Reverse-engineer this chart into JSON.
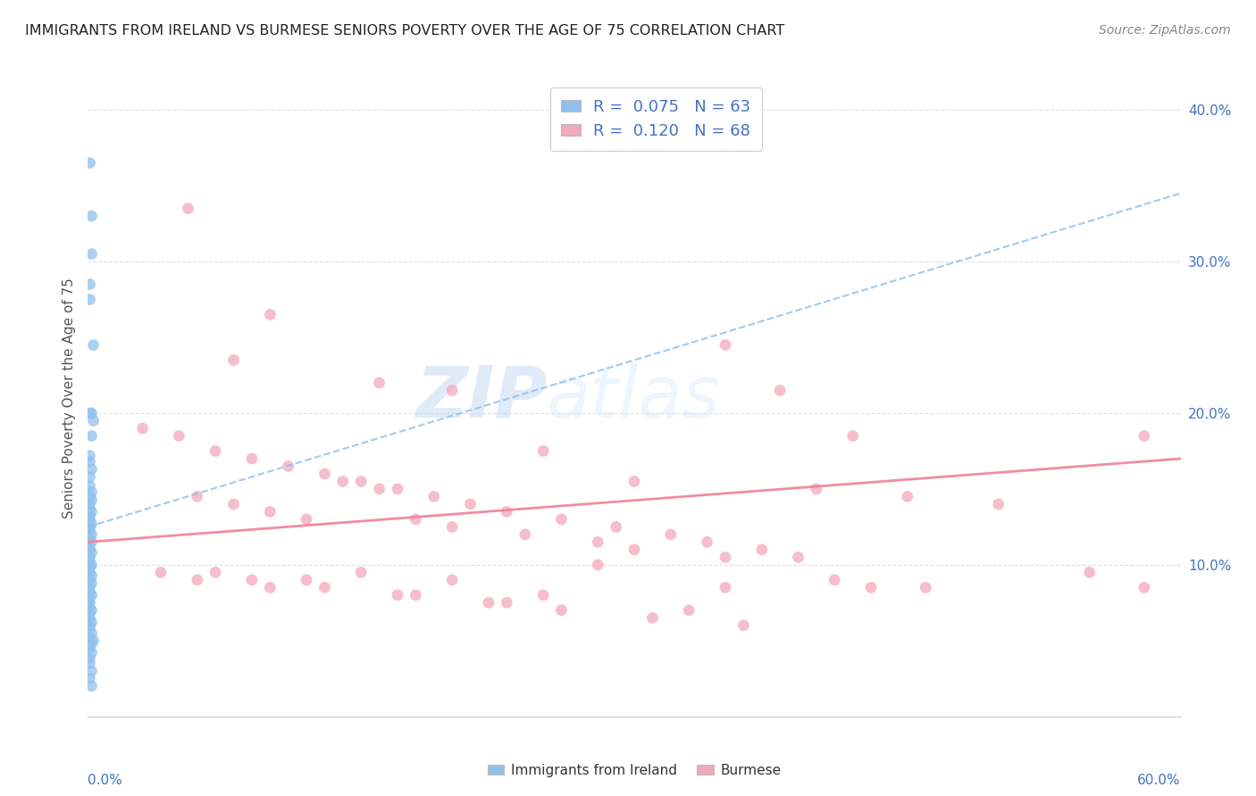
{
  "title": "IMMIGRANTS FROM IRELAND VS BURMESE SENIORS POVERTY OVER THE AGE OF 75 CORRELATION CHART",
  "source": "Source: ZipAtlas.com",
  "ylabel": "Seniors Poverty Over the Age of 75",
  "xlim": [
    0.0,
    0.6
  ],
  "ylim": [
    0.0,
    0.42
  ],
  "ireland_R": 0.075,
  "ireland_N": 63,
  "burmese_R": 0.12,
  "burmese_N": 68,
  "ireland_color": "#92C0EC",
  "burmese_color": "#F4A8BB",
  "ireland_line_color": "#92C0EC",
  "burmese_line_color": "#F08098",
  "legend_label_ireland": "Immigrants from Ireland",
  "legend_label_burmese": "Burmese",
  "watermark_zip": "ZIP",
  "watermark_atlas": "atlas",
  "background_color": "#ffffff",
  "ireland_x": [
    0.001,
    0.002,
    0.002,
    0.001,
    0.001,
    0.003,
    0.002,
    0.001,
    0.003,
    0.002,
    0.001,
    0.001,
    0.002,
    0.001,
    0.001,
    0.002,
    0.001,
    0.002,
    0.001,
    0.001,
    0.002,
    0.001,
    0.001,
    0.002,
    0.001,
    0.001,
    0.002,
    0.001,
    0.002,
    0.001,
    0.001,
    0.002,
    0.001,
    0.001,
    0.002,
    0.001,
    0.001,
    0.002,
    0.001,
    0.002,
    0.001,
    0.001,
    0.002,
    0.001,
    0.001,
    0.001,
    0.002,
    0.001,
    0.001,
    0.002,
    0.001,
    0.001,
    0.002,
    0.001,
    0.003,
    0.002,
    0.001,
    0.002,
    0.001,
    0.001,
    0.002,
    0.001,
    0.002
  ],
  "ireland_y": [
    0.365,
    0.33,
    0.305,
    0.285,
    0.275,
    0.245,
    0.2,
    0.2,
    0.195,
    0.185,
    0.172,
    0.168,
    0.163,
    0.158,
    0.152,
    0.148,
    0.145,
    0.143,
    0.14,
    0.137,
    0.135,
    0.132,
    0.13,
    0.127,
    0.125,
    0.123,
    0.12,
    0.118,
    0.115,
    0.112,
    0.11,
    0.108,
    0.105,
    0.102,
    0.1,
    0.098,
    0.095,
    0.093,
    0.09,
    0.088,
    0.085,
    0.082,
    0.08,
    0.078,
    0.075,
    0.072,
    0.07,
    0.068,
    0.065,
    0.062,
    0.06,
    0.058,
    0.055,
    0.052,
    0.05,
    0.048,
    0.045,
    0.042,
    0.038,
    0.035,
    0.03,
    0.025,
    0.02
  ],
  "burmese_x": [
    0.055,
    0.1,
    0.35,
    0.08,
    0.16,
    0.2,
    0.38,
    0.25,
    0.42,
    0.58,
    0.03,
    0.05,
    0.07,
    0.09,
    0.11,
    0.13,
    0.15,
    0.17,
    0.19,
    0.21,
    0.23,
    0.26,
    0.29,
    0.32,
    0.34,
    0.37,
    0.39,
    0.14,
    0.16,
    0.06,
    0.08,
    0.1,
    0.12,
    0.18,
    0.2,
    0.24,
    0.28,
    0.3,
    0.35,
    0.28,
    0.15,
    0.2,
    0.35,
    0.25,
    0.3,
    0.4,
    0.45,
    0.5,
    0.12,
    0.07,
    0.09,
    0.13,
    0.17,
    0.22,
    0.26,
    0.31,
    0.36,
    0.41,
    0.46,
    0.04,
    0.06,
    0.1,
    0.18,
    0.23,
    0.33,
    0.43,
    0.55,
    0.58
  ],
  "burmese_y": [
    0.335,
    0.265,
    0.245,
    0.235,
    0.22,
    0.215,
    0.215,
    0.175,
    0.185,
    0.185,
    0.19,
    0.185,
    0.175,
    0.17,
    0.165,
    0.16,
    0.155,
    0.15,
    0.145,
    0.14,
    0.135,
    0.13,
    0.125,
    0.12,
    0.115,
    0.11,
    0.105,
    0.155,
    0.15,
    0.145,
    0.14,
    0.135,
    0.13,
    0.13,
    0.125,
    0.12,
    0.115,
    0.11,
    0.105,
    0.1,
    0.095,
    0.09,
    0.085,
    0.08,
    0.155,
    0.15,
    0.145,
    0.14,
    0.09,
    0.095,
    0.09,
    0.085,
    0.08,
    0.075,
    0.07,
    0.065,
    0.06,
    0.09,
    0.085,
    0.095,
    0.09,
    0.085,
    0.08,
    0.075,
    0.07,
    0.085,
    0.095,
    0.085
  ],
  "ireland_trend": [
    0.125,
    0.345
  ],
  "burmese_trend": [
    0.115,
    0.17
  ],
  "ytick_positions": [
    0.0,
    0.1,
    0.2,
    0.3,
    0.4
  ],
  "ytick_labels": [
    "",
    "10.0%",
    "20.0%",
    "30.0%",
    "40.0%"
  ]
}
